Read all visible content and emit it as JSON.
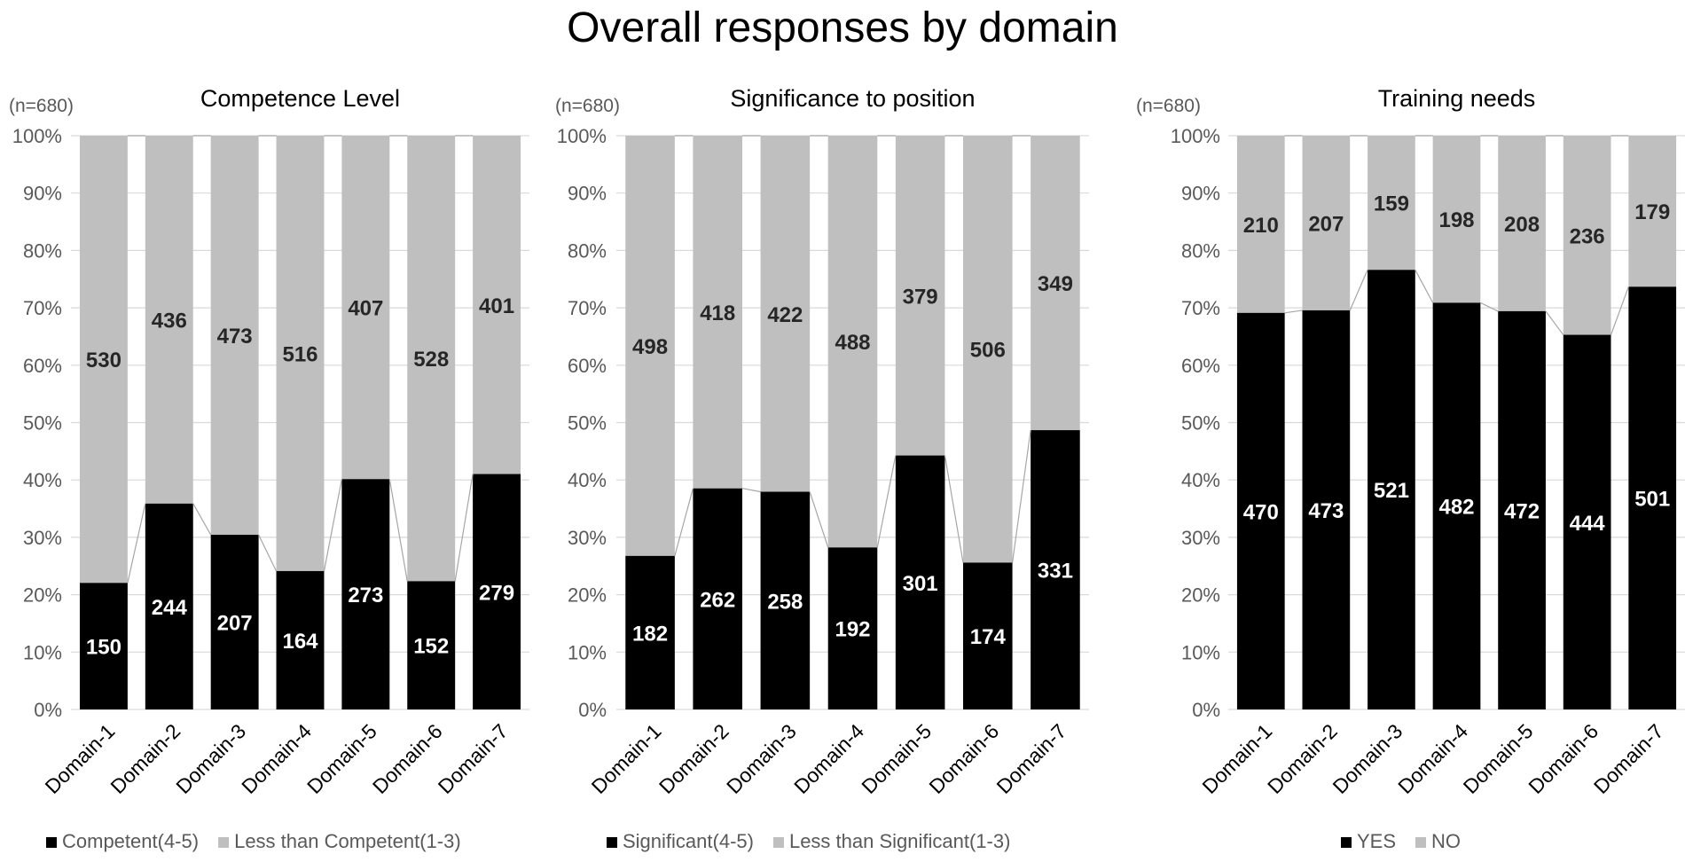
{
  "page": {
    "title": "Overall responses by domain"
  },
  "colors": {
    "primary": "#000000",
    "secondary": "#bfbfbf",
    "grid": "#d9d9d9",
    "connector": "#a6a6a6",
    "axis_text": "#595959",
    "title_text": "#000000"
  },
  "chart_data": [
    {
      "type": "bar",
      "stacked": "percent",
      "title": "Competence Level",
      "n_label": "(n=680)",
      "categories": [
        "Domain-1",
        "Domain-2",
        "Domain-3",
        "Domain-4",
        "Domain-5",
        "Domain-6",
        "Domain-7"
      ],
      "series": [
        {
          "name": "Competent(4-5)",
          "values": [
            150,
            244,
            207,
            164,
            273,
            152,
            279
          ]
        },
        {
          "name": "Less than Competent(1-3)",
          "values": [
            530,
            436,
            473,
            516,
            407,
            528,
            401
          ]
        }
      ],
      "yticks": [
        "0%",
        "10%",
        "20%",
        "30%",
        "40%",
        "50%",
        "60%",
        "70%",
        "80%",
        "90%",
        "100%"
      ],
      "ylim": [
        0,
        100
      ],
      "grid": true,
      "legend": "bottom",
      "series_lines": true
    },
    {
      "type": "bar",
      "stacked": "percent",
      "title": "Significance to position",
      "n_label": "(n=680)",
      "categories": [
        "Domain-1",
        "Domain-2",
        "Domain-3",
        "Domain-4",
        "Domain-5",
        "Domain-6",
        "Domain-7"
      ],
      "series": [
        {
          "name": "Significant(4-5)",
          "values": [
            182,
            262,
            258,
            192,
            301,
            174,
            331
          ]
        },
        {
          "name": "Less than Significant(1-3)",
          "values": [
            498,
            418,
            422,
            488,
            379,
            506,
            349
          ]
        }
      ],
      "yticks": [
        "0%",
        "10%",
        "20%",
        "30%",
        "40%",
        "50%",
        "60%",
        "70%",
        "80%",
        "90%",
        "100%"
      ],
      "ylim": [
        0,
        100
      ],
      "grid": true,
      "legend": "bottom",
      "series_lines": true
    },
    {
      "type": "bar",
      "stacked": "percent",
      "title": "Training needs",
      "n_label": "(n=680)",
      "categories": [
        "Domain-1",
        "Domain-2",
        "Domain-3",
        "Domain-4",
        "Domain-5",
        "Domain-6",
        "Domain-7"
      ],
      "series": [
        {
          "name": "YES",
          "values": [
            470,
            473,
            521,
            482,
            472,
            444,
            501
          ]
        },
        {
          "name": "NO",
          "values": [
            210,
            207,
            159,
            198,
            208,
            236,
            179
          ]
        }
      ],
      "yticks": [
        "0%",
        "10%",
        "20%",
        "30%",
        "40%",
        "50%",
        "60%",
        "70%",
        "80%",
        "90%",
        "100%"
      ],
      "ylim": [
        0,
        100
      ],
      "grid": true,
      "legend": "bottom",
      "series_lines": true
    }
  ]
}
